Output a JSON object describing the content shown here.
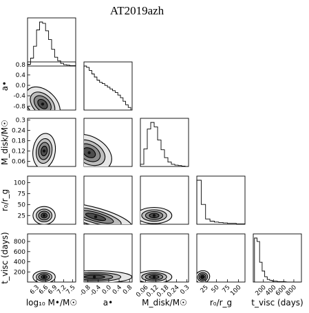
{
  "chart_data": {
    "type": "corner",
    "title": "AT2019azh",
    "parameters": [
      {
        "id": "logM",
        "label": "log₁₀ M•/M☉",
        "range": [
          6.0,
          7.6
        ],
        "ticks": [
          6.3,
          6.6,
          6.9,
          7.2,
          7.5
        ]
      },
      {
        "id": "a",
        "label": "a•",
        "range": [
          -0.95,
          0.9
        ],
        "ticks": [
          -0.8,
          -0.4,
          0.0,
          0.4,
          0.8
        ]
      },
      {
        "id": "mdisk",
        "label": "M_disk/M☉",
        "range": [
          0.03,
          0.31
        ],
        "ticks": [
          0.06,
          0.12,
          0.18,
          0.24,
          0.3
        ]
      },
      {
        "id": "r0",
        "label": "r₀/r_g",
        "range": [
          5,
          115
        ],
        "ticks": [
          25,
          50,
          75,
          100
        ]
      },
      {
        "id": "tvisc",
        "label": "t_visc (days)",
        "range": [
          0,
          950
        ],
        "ticks": [
          200,
          400,
          600,
          800
        ]
      }
    ],
    "y_axis_labels": [
      {
        "row": 1,
        "text": "a•"
      },
      {
        "row": 2,
        "text": "M_disk/M☉"
      },
      {
        "row": 3,
        "text": "r₀/r_g"
      },
      {
        "row": 4,
        "text": "t_visc (days)"
      }
    ],
    "y_tick_labels": [
      {
        "row": 1,
        "ticks": [
          0.8,
          0.4,
          0.0,
          -0.4,
          -0.8
        ]
      },
      {
        "row": 2,
        "ticks": [
          0.3,
          0.24,
          0.18,
          0.12,
          0.06
        ]
      },
      {
        "row": 3,
        "ticks": [
          100,
          75,
          50,
          25
        ]
      },
      {
        "row": 4,
        "ticks": [
          800,
          600,
          400,
          200
        ]
      }
    ],
    "marginals": [
      {
        "param": "logM",
        "bin_centers": [
          6.05,
          6.15,
          6.25,
          6.35,
          6.45,
          6.55,
          6.65,
          6.75,
          6.85,
          6.95,
          7.05,
          7.15,
          7.25,
          7.35,
          7.45,
          7.55
        ],
        "counts": [
          0.04,
          0.18,
          0.45,
          0.82,
          1.0,
          0.97,
          0.8,
          0.6,
          0.38,
          0.2,
          0.12,
          0.06,
          0.03,
          0.02,
          0.01,
          0.01
        ]
      },
      {
        "param": "a",
        "bin_centers": [
          -0.9,
          -0.8,
          -0.7,
          -0.6,
          -0.5,
          -0.4,
          -0.3,
          -0.2,
          -0.1,
          0.0,
          0.1,
          0.2,
          0.3,
          0.4,
          0.5,
          0.6,
          0.7,
          0.8
        ],
        "counts": [
          1.0,
          0.97,
          0.9,
          0.82,
          0.75,
          0.68,
          0.63,
          0.6,
          0.56,
          0.52,
          0.48,
          0.44,
          0.4,
          0.34,
          0.28,
          0.2,
          0.12,
          0.06
        ]
      },
      {
        "param": "mdisk",
        "bin_centers": [
          0.04,
          0.06,
          0.08,
          0.1,
          0.12,
          0.14,
          0.16,
          0.18,
          0.2,
          0.22,
          0.24,
          0.26,
          0.28,
          0.3
        ],
        "counts": [
          0.05,
          0.4,
          0.85,
          1.0,
          0.9,
          0.6,
          0.38,
          0.2,
          0.1,
          0.05,
          0.03,
          0.02,
          0.01,
          0.0
        ]
      },
      {
        "param": "r0",
        "bin_centers": [
          10,
          20,
          30,
          40,
          50,
          60,
          70,
          80,
          90,
          100,
          110
        ],
        "counts": [
          1.0,
          0.45,
          0.12,
          0.07,
          0.05,
          0.04,
          0.03,
          0.02,
          0.02,
          0.01,
          0.01
        ]
      },
      {
        "param": "tvisc",
        "bin_centers": [
          50,
          100,
          150,
          200,
          250,
          300,
          350,
          400,
          450,
          500,
          600,
          700,
          800,
          900
        ],
        "counts": [
          1.0,
          0.92,
          0.45,
          0.25,
          0.12,
          0.06,
          0.04,
          0.02,
          0.02,
          0.01,
          0.01,
          0.0,
          0.0,
          0.0
        ]
      }
    ],
    "joint_modes": [
      {
        "x": "logM",
        "y": "a",
        "center": [
          6.5,
          -0.72
        ],
        "spread": [
          0.22,
          0.38
        ],
        "corr": 0.75
      },
      {
        "x": "logM",
        "y": "mdisk",
        "center": [
          6.55,
          0.12
        ],
        "spread": [
          0.18,
          0.05
        ],
        "corr": -0.1
      },
      {
        "x": "a",
        "y": "mdisk",
        "center": [
          -0.75,
          0.11
        ],
        "spread": [
          0.45,
          0.045
        ],
        "corr": -0.4
      },
      {
        "x": "logM",
        "y": "r0",
        "center": [
          6.55,
          25
        ],
        "spread": [
          0.18,
          10
        ],
        "corr": 0.0
      },
      {
        "x": "a",
        "y": "r0",
        "center": [
          -0.5,
          22
        ],
        "spread": [
          0.7,
          10
        ],
        "corr": -0.2
      },
      {
        "x": "mdisk",
        "y": "r0",
        "center": [
          0.11,
          25
        ],
        "spread": [
          0.05,
          9
        ],
        "corr": 0.0
      },
      {
        "x": "logM",
        "y": "tvisc",
        "center": [
          6.55,
          100
        ],
        "spread": [
          0.18,
          60
        ],
        "corr": 0.0
      },
      {
        "x": "a",
        "y": "tvisc",
        "center": [
          -0.55,
          100
        ],
        "spread": [
          0.7,
          60
        ],
        "corr": 0.0
      },
      {
        "x": "mdisk",
        "y": "tvisc",
        "center": [
          0.11,
          100
        ],
        "spread": [
          0.05,
          60
        ],
        "corr": 0.0
      },
      {
        "x": "r0",
        "y": "tvisc",
        "center": [
          18,
          100
        ],
        "spread": [
          8,
          60
        ],
        "corr": 0.2
      }
    ],
    "contour_levels": [
      0.12,
      0.35,
      0.6,
      0.85
    ],
    "contour_fills": [
      "#e6e6e6",
      "#bdbdbd",
      "#8a8a8a",
      "#4d4d4d"
    ],
    "contour_line_color": "#000000",
    "histogram_color": "#000000",
    "grid": false,
    "legend": "none"
  }
}
